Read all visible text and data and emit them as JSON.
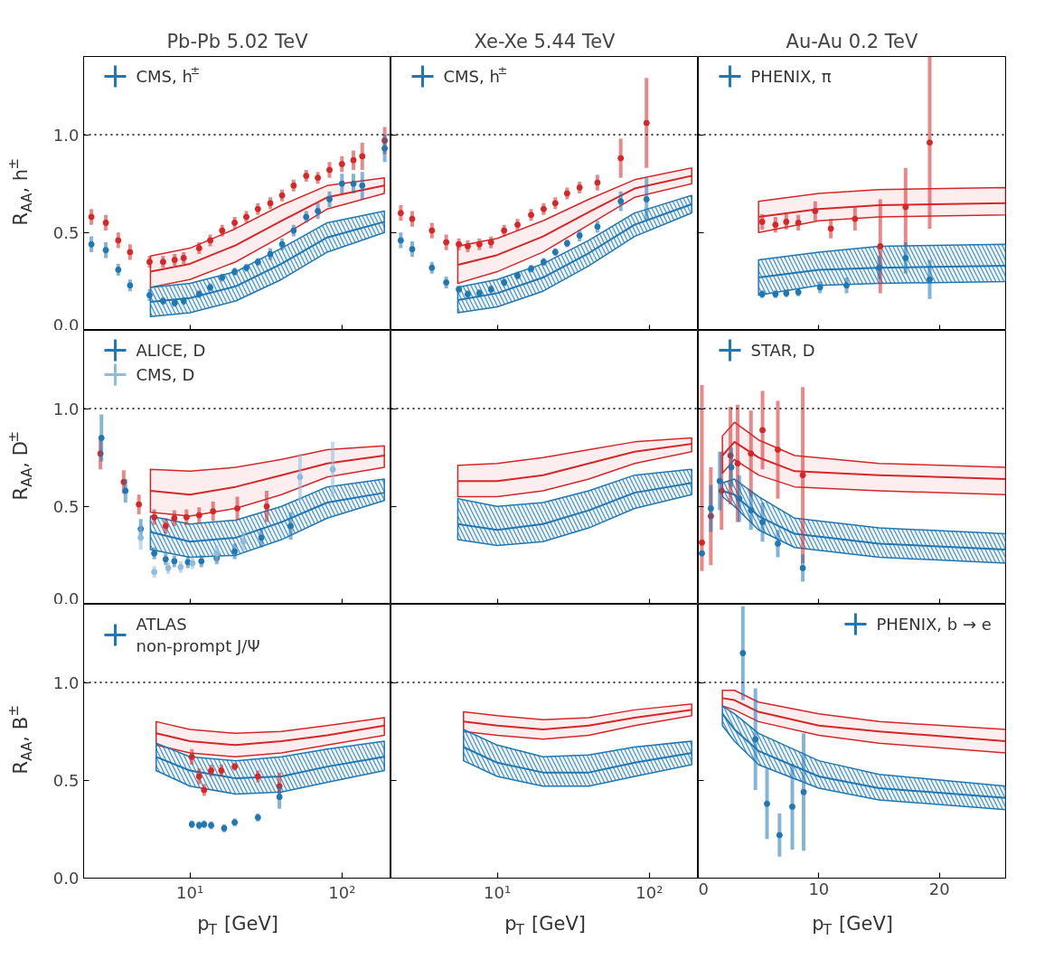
{
  "chart_data": [
    {
      "type": "scatter",
      "title": "Pb-Pb 5.02 TeV",
      "ylabel": "R$_{AA}$, h$^{±}$",
      "log": "x",
      "xlim": [
        2,
        210
      ],
      "xticks": [
        {
          "value": 10,
          "label": null
        },
        {
          "value": 100,
          "label": null
        }
      ],
      "ylim": [
        0,
        1.4
      ],
      "yticks": [
        {
          "value": 0,
          "label": "0.0"
        },
        {
          "value": 0.5,
          "label": "0.5"
        },
        {
          "value": 1,
          "label": "1.0"
        }
      ],
      "tick_labels": "y",
      "legend": "top left",
      "ref_lines": [
        {
          "axis": "y",
          "value": 1,
          "color": "#000000",
          "line_style": "dotted"
        }
      ],
      "series": [
        {
          "type": "line",
          "color": "#d62728",
          "x": [
            5.5,
            10,
            20,
            40,
            80,
            190
          ],
          "values": [
            0.3,
            0.34,
            0.435,
            0.56,
            0.68,
            0.74
          ],
          "lower": [
            0.22,
            0.26,
            0.35,
            0.48,
            0.62,
            0.7
          ],
          "upper": [
            0.38,
            0.42,
            0.52,
            0.64,
            0.74,
            0.78
          ]
        },
        {
          "type": "line",
          "color": "#1f77b4",
          "x": [
            5.5,
            10,
            20,
            40,
            80,
            190
          ],
          "values": [
            0.145,
            0.165,
            0.225,
            0.34,
            0.475,
            0.555
          ],
          "lower": [
            0.07,
            0.09,
            0.15,
            0.26,
            0.4,
            0.5
          ],
          "upper": [
            0.22,
            0.24,
            0.3,
            0.42,
            0.55,
            0.61
          ]
        },
        {
          "marker": "circle",
          "color": "#d62728",
          "x": [
            2.25,
            2.8,
            3.38,
            4.04,
            5.43,
            6.66,
            7.94,
            9.1,
            11.5,
            13.6,
            16.3,
            19.7,
            23.5,
            28,
            33.8,
            40.4,
            48.1,
            58.2,
            69.4,
            82.8,
            100,
            119,
            136,
            191
          ],
          "values": [
            0.58,
            0.55,
            0.46,
            0.4,
            0.35,
            0.35,
            0.36,
            0.37,
            0.42,
            0.46,
            0.51,
            0.55,
            0.58,
            0.62,
            0.65,
            0.69,
            0.74,
            0.79,
            0.78,
            0.82,
            0.85,
            0.87,
            0.89,
            0.97
          ],
          "errors": [
            0.04,
            0.04,
            0.04,
            0.04,
            0.03,
            0.03,
            0.03,
            0.03,
            0.03,
            0.03,
            0.03,
            0.03,
            0.03,
            0.03,
            0.03,
            0.03,
            0.03,
            0.03,
            0.03,
            0.04,
            0.04,
            0.05,
            0.07,
            0.07
          ]
        },
        {
          "marker": "circle",
          "name": "CMS, h$^{±}$",
          "color": "#1f77b4",
          "x": [
            2.25,
            2.8,
            3.38,
            4.04,
            5.43,
            6.66,
            7.94,
            9.1,
            11.5,
            13.6,
            16.3,
            19.7,
            23.5,
            28,
            33.8,
            40.4,
            48.1,
            58.2,
            69.4,
            82.8,
            100,
            119,
            136,
            191
          ],
          "values": [
            0.44,
            0.41,
            0.31,
            0.23,
            0.18,
            0.15,
            0.14,
            0.15,
            0.185,
            0.22,
            0.27,
            0.3,
            0.32,
            0.35,
            0.39,
            0.44,
            0.51,
            0.58,
            0.61,
            0.67,
            0.75,
            0.75,
            0.74,
            0.93
          ],
          "errors": [
            0.04,
            0.04,
            0.03,
            0.03,
            0.03,
            0.02,
            0.02,
            0.02,
            0.02,
            0.02,
            0.02,
            0.02,
            0.02,
            0.02,
            0.03,
            0.03,
            0.03,
            0.03,
            0.04,
            0.04,
            0.05,
            0.05,
            0.07,
            0.07
          ]
        }
      ]
    },
    {
      "type": "scatter",
      "title": "Xe-Xe 5.44 TeV",
      "log": "x",
      "xlim": [
        2,
        210
      ],
      "xticks": [
        {
          "value": 10,
          "label": null
        },
        {
          "value": 100,
          "label": null
        }
      ],
      "ylim": [
        0,
        1.4
      ],
      "yticks": [
        {
          "value": 0,
          "label": null
        },
        {
          "value": 0.5,
          "label": null
        },
        {
          "value": 1,
          "label": null
        }
      ],
      "tick_labels": false,
      "legend": "top left",
      "ref_lines": [
        {
          "axis": "y",
          "value": 1,
          "color": "#000000",
          "line_style": "dotted"
        }
      ],
      "series": [
        {
          "type": "line",
          "color": "#d62728",
          "x": [
            5.5,
            10,
            20,
            40,
            80,
            190
          ],
          "values": [
            0.335,
            0.385,
            0.48,
            0.605,
            0.725,
            0.79
          ],
          "lower": [
            0.24,
            0.3,
            0.4,
            0.54,
            0.68,
            0.75
          ],
          "upper": [
            0.43,
            0.47,
            0.56,
            0.67,
            0.77,
            0.83
          ]
        },
        {
          "type": "line",
          "color": "#1f77b4",
          "x": [
            5.5,
            10,
            20,
            40,
            80,
            190
          ],
          "values": [
            0.155,
            0.19,
            0.27,
            0.395,
            0.54,
            0.645
          ],
          "lower": [
            0.09,
            0.12,
            0.2,
            0.33,
            0.48,
            0.6
          ],
          "upper": [
            0.22,
            0.26,
            0.34,
            0.46,
            0.6,
            0.69
          ]
        },
        {
          "marker": "circle",
          "color": "#d62728",
          "x": [
            2.32,
            2.76,
            3.72,
            4.62,
            5.59,
            6.4,
            7.63,
            9.1,
            11.1,
            13.6,
            16.7,
            20.2,
            24.1,
            28.8,
            34.8,
            45.6,
            64.9,
            95.9
          ],
          "values": [
            0.6,
            0.57,
            0.51,
            0.45,
            0.44,
            0.43,
            0.44,
            0.45,
            0.51,
            0.54,
            0.59,
            0.62,
            0.65,
            0.7,
            0.73,
            0.755,
            0.88,
            1.06
          ],
          "errors": [
            0.04,
            0.04,
            0.04,
            0.04,
            0.03,
            0.03,
            0.03,
            0.03,
            0.03,
            0.03,
            0.03,
            0.03,
            0.03,
            0.03,
            0.03,
            0.04,
            0.1,
            0.23
          ]
        },
        {
          "marker": "circle",
          "name": "CMS, h$^{±}$",
          "color": "#1f77b4",
          "x": [
            2.32,
            2.76,
            3.72,
            4.62,
            5.59,
            6.4,
            7.63,
            9.1,
            11.1,
            13.6,
            16.7,
            20.2,
            24.1,
            28.8,
            34.8,
            45.6,
            64.9,
            95.9
          ],
          "values": [
            0.46,
            0.415,
            0.32,
            0.245,
            0.21,
            0.185,
            0.19,
            0.21,
            0.245,
            0.28,
            0.315,
            0.35,
            0.4,
            0.445,
            0.485,
            0.53,
            0.66,
            0.67
          ],
          "errors": [
            0.04,
            0.04,
            0.03,
            0.03,
            0.02,
            0.02,
            0.02,
            0.02,
            0.02,
            0.02,
            0.02,
            0.02,
            0.02,
            0.02,
            0.03,
            0.03,
            0.05,
            0.11
          ]
        }
      ]
    },
    {
      "type": "scatter",
      "title": "Au-Au 0.2 TeV",
      "xlim": [
        0,
        25.5
      ],
      "xticks": [
        {
          "value": 0,
          "label": null
        },
        {
          "value": 10,
          "label": null
        },
        {
          "value": 20,
          "label": null
        }
      ],
      "ylim": [
        0,
        1.4
      ],
      "yticks": [
        {
          "value": 0,
          "label": null
        },
        {
          "value": 0.5,
          "label": null
        },
        {
          "value": 1,
          "label": null
        }
      ],
      "tick_labels": false,
      "legend": "top left",
      "ref_lines": [
        {
          "axis": "y",
          "value": 1,
          "color": "#000000",
          "line_style": "dotted"
        }
      ],
      "series": [
        {
          "type": "line",
          "color": "#d62728",
          "x": [
            5,
            10,
            15,
            25.5
          ],
          "values": [
            0.58,
            0.62,
            0.64,
            0.65
          ],
          "lower": [
            0.5,
            0.56,
            0.58,
            0.59
          ],
          "upper": [
            0.66,
            0.7,
            0.72,
            0.73
          ]
        },
        {
          "type": "line",
          "color": "#1f77b4",
          "x": [
            5,
            10,
            15,
            25.5
          ],
          "values": [
            0.27,
            0.31,
            0.32,
            0.33
          ],
          "lower": [
            0.18,
            0.23,
            0.24,
            0.25
          ],
          "upper": [
            0.36,
            0.4,
            0.43,
            0.44
          ]
        },
        {
          "marker": "circle",
          "color": "#d62728",
          "x": [
            5.3,
            6.4,
            7.3,
            8.3,
            9.7,
            11.0,
            13.0,
            15.1,
            17.2,
            19.2
          ],
          "values": [
            0.555,
            0.54,
            0.555,
            0.55,
            0.61,
            0.52,
            0.57,
            0.43,
            0.63,
            0.96
          ],
          "errors": [
            0.04,
            0.04,
            0.04,
            0.04,
            0.05,
            0.05,
            0.06,
            0.24,
            0.2,
            0.44
          ]
        },
        {
          "marker": "circle",
          "name": "PHENIX, π",
          "color": "#1f77b4",
          "x": [
            5.3,
            6.4,
            7.3,
            8.3,
            10.1,
            12.3,
            15.0,
            17.2,
            19.2
          ],
          "values": [
            0.185,
            0.185,
            0.19,
            0.195,
            0.22,
            0.23,
            0.32,
            0.37,
            0.26
          ],
          "errors": [
            0.02,
            0.02,
            0.02,
            0.02,
            0.03,
            0.04,
            0.06,
            0.08,
            0.1
          ]
        }
      ]
    },
    {
      "type": "scatter",
      "ylabel": "R$_{AA}$, D$^{±}$",
      "log": "x",
      "xlim": [
        2,
        210
      ],
      "xticks": [
        {
          "value": 10,
          "label": null
        },
        {
          "value": 100,
          "label": null
        }
      ],
      "ylim": [
        0,
        1.4
      ],
      "yticks": [
        {
          "value": 0,
          "label": "0.0"
        },
        {
          "value": 0.5,
          "label": "0.5"
        },
        {
          "value": 1,
          "label": "1.0"
        }
      ],
      "tick_labels": "y",
      "legend": "top left",
      "ref_lines": [
        {
          "axis": "y",
          "value": 1,
          "color": "#000000",
          "line_style": "dotted"
        }
      ],
      "series": [
        {
          "type": "line",
          "color": "#d62728",
          "x": [
            5.5,
            10,
            20,
            40,
            80,
            190
          ],
          "values": [
            0.58,
            0.56,
            0.6,
            0.66,
            0.72,
            0.76
          ],
          "lower": [
            0.47,
            0.45,
            0.49,
            0.56,
            0.65,
            0.7
          ],
          "upper": [
            0.69,
            0.68,
            0.7,
            0.74,
            0.79,
            0.81
          ]
        },
        {
          "type": "line",
          "color": "#1f77b4",
          "x": [
            5.5,
            10,
            20,
            40,
            80,
            190
          ],
          "values": [
            0.37,
            0.32,
            0.34,
            0.42,
            0.52,
            0.57
          ],
          "lower": [
            0.28,
            0.24,
            0.25,
            0.33,
            0.44,
            0.53
          ],
          "upper": [
            0.45,
            0.41,
            0.43,
            0.5,
            0.6,
            0.64
          ]
        },
        {
          "marker": "circle",
          "color": "#d62728",
          "x": [
            2.58,
            3.67,
            4.62,
            5.83,
            6.93,
            7.9,
            9.5,
            11.5,
            14.2,
            20.5,
            32
          ],
          "values": [
            0.77,
            0.625,
            0.51,
            0.445,
            0.4,
            0.44,
            0.445,
            0.455,
            0.475,
            0.49,
            0.5
          ],
          "errors": [
            0.08,
            0.06,
            0.05,
            0.04,
            0.04,
            0.04,
            0.04,
            0.04,
            0.05,
            0.06,
            0.08
          ]
        },
        {
          "marker": "circle",
          "name": "ALICE, D",
          "color": "#1f77b4",
          "x": [
            2.62,
            3.77,
            4.75,
            5.83,
            6.93,
            7.9,
            9.7,
            11.9,
            15,
            19.7,
            29.5,
            46
          ],
          "values": [
            0.85,
            0.58,
            0.385,
            0.26,
            0.23,
            0.22,
            0.215,
            0.22,
            0.235,
            0.27,
            0.34,
            0.4
          ],
          "errors": [
            0.12,
            0.06,
            0.05,
            0.03,
            0.03,
            0.03,
            0.03,
            0.03,
            0.03,
            0.04,
            0.05,
            0.07
          ]
        },
        {
          "marker": "circle",
          "name": "CMS, D",
          "color": "#8fbbdc",
          "x": [
            4.75,
            5.83,
            7.2,
            8.7,
            10.4,
            15,
            22.5,
            53,
            87
          ],
          "values": [
            0.34,
            0.165,
            0.185,
            0.19,
            0.21,
            0.26,
            0.32,
            0.65,
            0.69
          ],
          "errors": [
            0.06,
            0.03,
            0.03,
            0.03,
            0.03,
            0.04,
            0.05,
            0.12,
            0.14
          ]
        }
      ]
    },
    {
      "type": "line",
      "log": "x",
      "xlim": [
        2,
        210
      ],
      "xticks": [
        {
          "value": 10,
          "label": null
        },
        {
          "value": 100,
          "label": null
        }
      ],
      "ylim": [
        0,
        1.4
      ],
      "yticks": [
        {
          "value": 0,
          "label": null
        },
        {
          "value": 0.5,
          "label": null
        },
        {
          "value": 1,
          "label": null
        }
      ],
      "tick_labels": false,
      "ref_lines": [
        {
          "axis": "y",
          "value": 1,
          "color": "#000000",
          "line_style": "dotted"
        }
      ],
      "series": [
        {
          "color": "#d62728",
          "x": [
            5.5,
            10,
            20,
            40,
            80,
            190
          ],
          "values": [
            0.63,
            0.63,
            0.66,
            0.72,
            0.78,
            0.82
          ],
          "lower": [
            0.55,
            0.55,
            0.58,
            0.64,
            0.72,
            0.78
          ],
          "upper": [
            0.71,
            0.72,
            0.75,
            0.79,
            0.83,
            0.85
          ]
        },
        {
          "color": "#1f77b4",
          "x": [
            5.5,
            10,
            20,
            40,
            80,
            190
          ],
          "values": [
            0.41,
            0.38,
            0.41,
            0.48,
            0.57,
            0.62
          ],
          "lower": [
            0.33,
            0.3,
            0.32,
            0.39,
            0.49,
            0.56
          ],
          "upper": [
            0.54,
            0.5,
            0.52,
            0.58,
            0.66,
            0.69
          ]
        }
      ]
    },
    {
      "type": "scatter",
      "xlim": [
        0,
        25.5
      ],
      "xticks": [
        {
          "value": 0,
          "label": null
        },
        {
          "value": 10,
          "label": null
        },
        {
          "value": 20,
          "label": null
        }
      ],
      "ylim": [
        0,
        1.4
      ],
      "yticks": [
        {
          "value": 0,
          "label": null
        },
        {
          "value": 0.5,
          "label": null
        },
        {
          "value": 1,
          "label": null
        }
      ],
      "tick_labels": false,
      "legend": "top left",
      "ref_lines": [
        {
          "axis": "y",
          "value": 1,
          "color": "#000000",
          "line_style": "dotted"
        }
      ],
      "series": [
        {
          "type": "line",
          "color": "#d62728",
          "x": [
            2,
            3,
            5,
            8,
            15,
            25.5
          ],
          "values": [
            0.76,
            0.83,
            0.75,
            0.68,
            0.66,
            0.64
          ],
          "lower": [
            0.67,
            0.74,
            0.66,
            0.6,
            0.58,
            0.56
          ],
          "upper": [
            0.86,
            0.93,
            0.84,
            0.76,
            0.72,
            0.7
          ]
        },
        {
          "type": "line",
          "color": "#1f77b4",
          "x": [
            2,
            3,
            5,
            8,
            15,
            25.5
          ],
          "values": [
            0.58,
            0.56,
            0.45,
            0.36,
            0.31,
            0.28
          ],
          "lower": [
            0.55,
            0.5,
            0.38,
            0.29,
            0.24,
            0.21
          ],
          "upper": [
            0.62,
            0.64,
            0.55,
            0.44,
            0.39,
            0.36
          ]
        },
        {
          "marker": "circle",
          "color": "#d62728",
          "x": [
            0.3,
            1.04,
            1.93,
            2.67,
            3.26,
            4.37,
            5.33,
            6.6,
            8.67
          ],
          "values": [
            0.315,
            0.45,
            0.58,
            0.76,
            0.72,
            0.77,
            0.89,
            0.79,
            0.66
          ],
          "errors": [
            [
              0.17,
              1.12
            ],
            0.25,
            0.2,
            0.25,
            0.3,
            0.22,
            0.2,
            0.25,
            0.45
          ]
        },
        {
          "marker": "circle",
          "name": "STAR, D",
          "color": "#1f77b4",
          "x": [
            0.3,
            1.04,
            1.78,
            2.74,
            3.4,
            4.37,
            5.33,
            6.6,
            8.67
          ],
          "values": [
            0.26,
            0.49,
            0.63,
            0.7,
            0.54,
            0.48,
            0.42,
            0.31,
            0.185
          ],
          "errors": [
            null,
            0.12,
            0.15,
            0.1,
            0.12,
            0.1,
            0.1,
            0.07,
            0.07
          ]
        }
      ]
    },
    {
      "type": "scatter",
      "ylabel": "R$_{AA}$, B$^{±}$",
      "xlabel": "p$_{T}$ [GeV]",
      "log": "x",
      "xlim": [
        2,
        210
      ],
      "xticks": [
        {
          "value": 10,
          "label": "10¹"
        },
        {
          "value": 100,
          "label": "10²"
        }
      ],
      "ylim": [
        0,
        1.4
      ],
      "yticks": [
        {
          "value": 0,
          "label": "0.0"
        },
        {
          "value": 0.5,
          "label": "0.5"
        },
        {
          "value": 1,
          "label": "1.0"
        }
      ],
      "legend": "top left",
      "ref_lines": [
        {
          "axis": "y",
          "value": 1,
          "color": "#000000",
          "line_style": "dotted"
        }
      ],
      "series": [
        {
          "type": "line",
          "color": "#d62728",
          "x": [
            6,
            10,
            20,
            40,
            80,
            190
          ],
          "values": [
            0.74,
            0.7,
            0.68,
            0.7,
            0.73,
            0.78
          ],
          "lower": [
            0.68,
            0.64,
            0.62,
            0.64,
            0.68,
            0.73
          ],
          "upper": [
            0.8,
            0.76,
            0.74,
            0.75,
            0.78,
            0.82
          ]
        },
        {
          "type": "line",
          "color": "#1f77b4",
          "x": [
            6,
            10,
            20,
            40,
            80,
            190
          ],
          "values": [
            0.62,
            0.55,
            0.51,
            0.52,
            0.57,
            0.62
          ],
          "lower": [
            0.55,
            0.47,
            0.43,
            0.44,
            0.49,
            0.55
          ],
          "upper": [
            0.69,
            0.62,
            0.6,
            0.62,
            0.66,
            0.7
          ]
        },
        {
          "marker": "circle",
          "color": "#d62728",
          "x": [
            10.3,
            11.5,
            12.4,
            13.8,
            16.1,
            19.7,
            28,
            38.8
          ],
          "values": [
            0.62,
            0.52,
            0.45,
            0.55,
            0.55,
            0.57,
            0.52,
            0.47
          ],
          "errors": [
            0.04,
            0.04,
            0.03,
            0.03,
            0.03,
            0.02,
            0.03,
            0.07
          ]
        },
        {
          "marker": "circle",
          "name": "ATLAS\nnon-prompt J/Ψ",
          "color": "#1f77b4",
          "x": [
            10.3,
            11.5,
            12.4,
            13.8,
            16.8,
            19.7,
            28,
            38.8
          ],
          "values": [
            0.275,
            0.27,
            0.275,
            0.27,
            0.255,
            0.285,
            0.31,
            0.415
          ],
          "errors": [
            0.02,
            0.02,
            0.02,
            0.02,
            0.02,
            0.02,
            0.02,
            0.06
          ]
        }
      ]
    },
    {
      "type": "line",
      "xlabel": "p$_{T}$ [GeV]",
      "log": "x",
      "xlim": [
        2,
        210
      ],
      "xticks": [
        {
          "value": 10,
          "label": "10¹"
        },
        {
          "value": 100,
          "label": "10²"
        }
      ],
      "ylim": [
        0,
        1.4
      ],
      "yticks": [
        {
          "value": 0,
          "label": null
        },
        {
          "value": 0.5,
          "label": null
        },
        {
          "value": 1,
          "label": null
        }
      ],
      "tick_labels": "x",
      "ref_lines": [
        {
          "axis": "y",
          "value": 1,
          "color": "#000000",
          "line_style": "dotted"
        }
      ],
      "series": [
        {
          "color": "#d62728",
          "x": [
            6,
            10,
            20,
            40,
            80,
            190
          ],
          "values": [
            0.8,
            0.78,
            0.76,
            0.78,
            0.82,
            0.86
          ],
          "lower": [
            0.75,
            0.73,
            0.71,
            0.73,
            0.78,
            0.83
          ],
          "upper": [
            0.85,
            0.83,
            0.81,
            0.82,
            0.86,
            0.89
          ]
        },
        {
          "color": "#1f77b4",
          "x": [
            6,
            10,
            20,
            40,
            80,
            190
          ],
          "values": [
            0.67,
            0.59,
            0.54,
            0.54,
            0.59,
            0.64
          ],
          "lower": [
            0.6,
            0.52,
            0.47,
            0.47,
            0.52,
            0.58
          ],
          "upper": [
            0.76,
            0.68,
            0.62,
            0.63,
            0.67,
            0.7
          ]
        }
      ]
    },
    {
      "type": "scatter",
      "xlabel": "p$_{T}$ [GeV]",
      "xlim": [
        0,
        25.5
      ],
      "xticks": [
        0,
        10,
        20
      ],
      "ylim": [
        0,
        1.4
      ],
      "yticks": [
        {
          "value": 0,
          "label": null
        },
        {
          "value": 0.5,
          "label": null
        },
        {
          "value": 1,
          "label": null
        }
      ],
      "tick_labels": "x",
      "legend": "top right",
      "ref_lines": [
        {
          "axis": "y",
          "value": 1,
          "color": "#000000",
          "line_style": "dotted"
        }
      ],
      "series": [
        {
          "type": "line",
          "color": "#d62728",
          "x": [
            2,
            3,
            5,
            10,
            15,
            25.5
          ],
          "values": [
            0.92,
            0.91,
            0.85,
            0.78,
            0.75,
            0.7
          ],
          "lower": [
            0.88,
            0.86,
            0.8,
            0.73,
            0.69,
            0.64
          ],
          "upper": [
            0.96,
            0.96,
            0.9,
            0.84,
            0.8,
            0.76
          ]
        },
        {
          "type": "line",
          "color": "#1f77b4",
          "x": [
            2,
            3,
            5,
            10,
            15,
            25.5
          ],
          "values": [
            0.84,
            0.76,
            0.65,
            0.52,
            0.46,
            0.41
          ],
          "lower": [
            0.78,
            0.7,
            0.58,
            0.46,
            0.4,
            0.35
          ],
          "upper": [
            0.88,
            0.84,
            0.74,
            0.6,
            0.53,
            0.47
          ]
        },
        {
          "marker": "circle",
          "name": "PHENIX, b → e",
          "color": "#1f77b4",
          "x": [
            3.7,
            4.74,
            5.7,
            6.74,
            7.8,
            8.74
          ],
          "values": [
            1.15,
            0.71,
            0.38,
            0.22,
            0.365,
            0.44
          ],
          "errors": [
            0.24,
            0.26,
            0.18,
            0.11,
            0.22,
            0.3
          ]
        }
      ]
    }
  ]
}
